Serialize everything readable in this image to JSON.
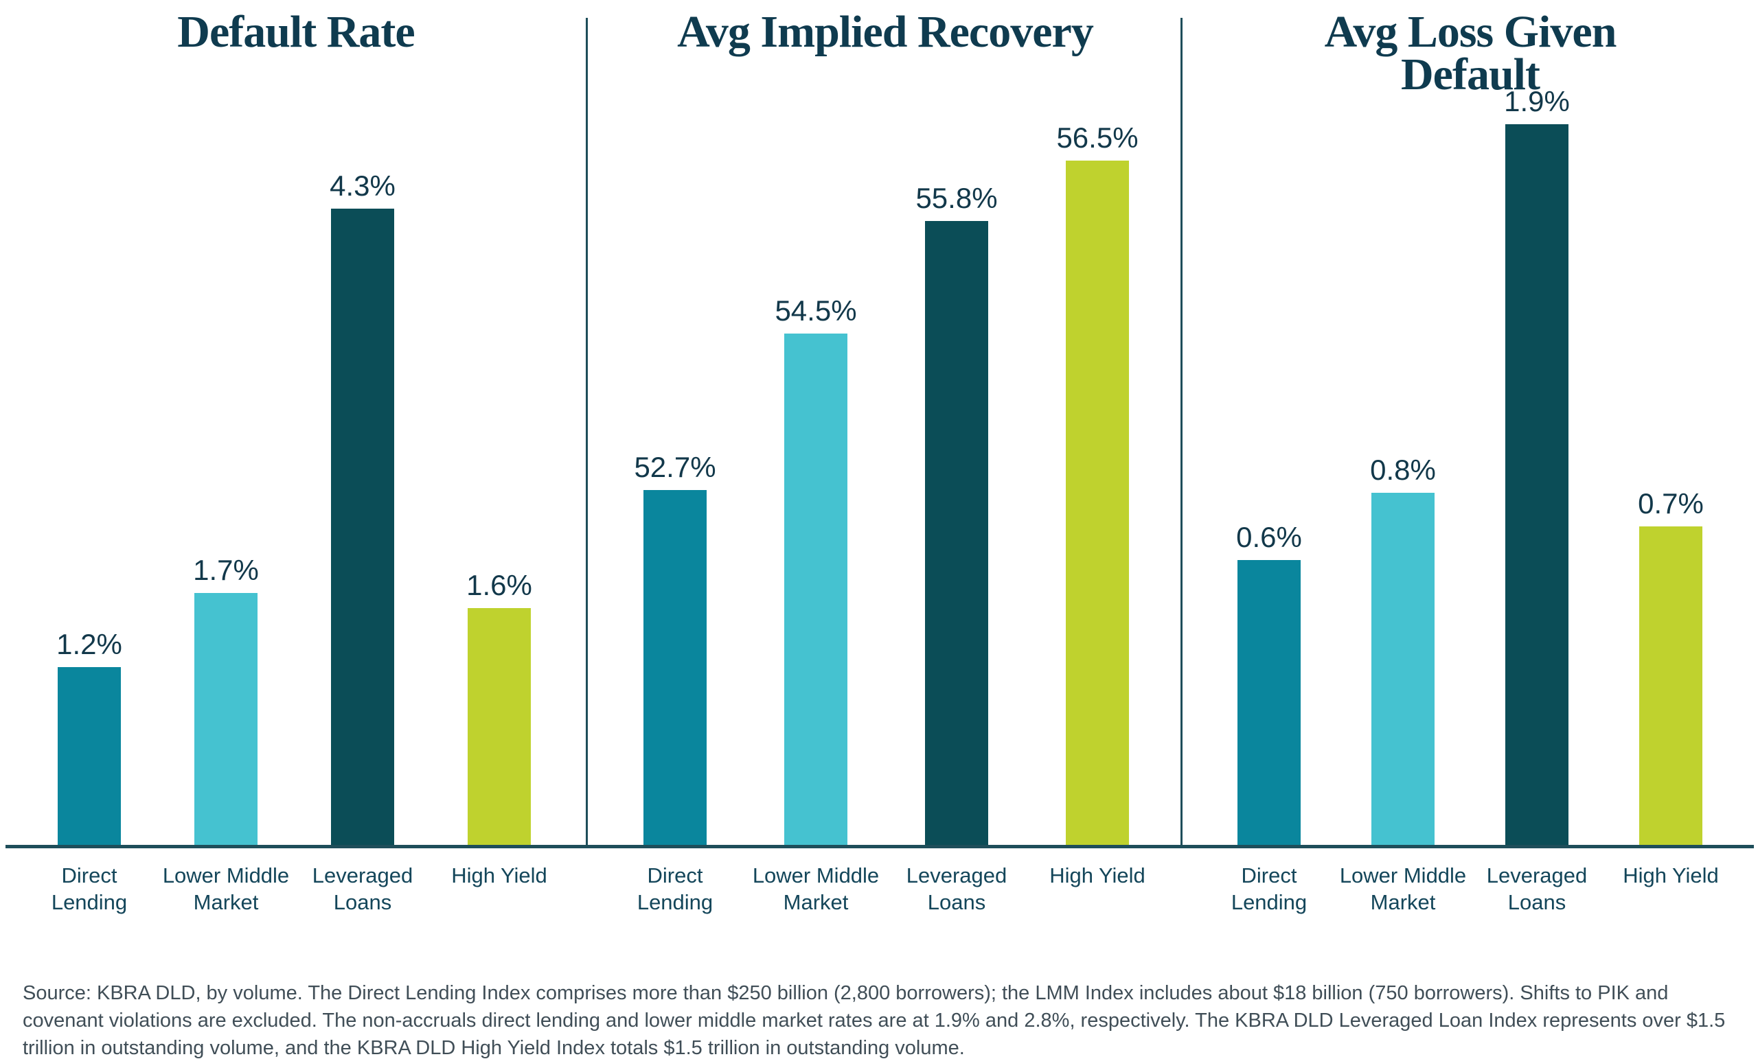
{
  "page": {
    "background": "#ffffff",
    "axis_color": "#1e4e5a",
    "title_color": "#0f3b4f",
    "value_label_color": "#12384a",
    "category_label_color": "#14465a",
    "source_color": "#404e57"
  },
  "chart_data": [
    {
      "type": "bar",
      "title": "Default Rate",
      "title_lines": [
        "Default Rate"
      ],
      "categories": [
        "Direct Lending",
        "Lower Middle Market",
        "Leveraged Loans",
        "High Yield"
      ],
      "category_lines": [
        [
          "Direct",
          "Lending"
        ],
        [
          "Lower Middle",
          "Market"
        ],
        [
          "Leveraged",
          "Loans"
        ],
        [
          "High Yield"
        ]
      ],
      "values": [
        1.2,
        1.7,
        4.3,
        1.6
      ],
      "value_labels": [
        "1.2%",
        "1.7%",
        "4.3%",
        "1.6%"
      ],
      "unit": "%",
      "ylim": [
        0,
        4.87
      ],
      "bar_colors": [
        "#0a869d",
        "#45c2d0",
        "#0b4d57",
        "#bfd22e"
      ],
      "grid": false,
      "legend": "none"
    },
    {
      "type": "bar",
      "title": "Avg Implied Recovery",
      "title_lines": [
        "Avg Implied Recovery"
      ],
      "categories": [
        "Direct Lending",
        "Lower Middle Market",
        "Leveraged Loans",
        "High Yield"
      ],
      "category_lines": [
        [
          "Direct",
          "Lending"
        ],
        [
          "Lower Middle",
          "Market"
        ],
        [
          "Leveraged",
          "Loans"
        ],
        [
          "High Yield"
        ]
      ],
      "values": [
        52.7,
        54.5,
        55.8,
        56.5
      ],
      "value_labels": [
        "52.7%",
        "54.5%",
        "55.8%",
        "56.5%"
      ],
      "unit": "%",
      "ylim": [
        48.6,
        56.92
      ],
      "bar_colors": [
        "#0a869d",
        "#45c2d0",
        "#0b4d57",
        "#bfd22e"
      ],
      "grid": false,
      "legend": "none"
    },
    {
      "type": "bar",
      "title": "Avg Loss Given Default",
      "title_lines": [
        "Avg Loss Given",
        "Default"
      ],
      "categories": [
        "Direct Lending",
        "Lower Middle Market",
        "Leveraged Loans",
        "High Yield"
      ],
      "category_lines": [
        [
          "Direct",
          "Lending"
        ],
        [
          "Lower Middle",
          "Market"
        ],
        [
          "Leveraged",
          "Loans"
        ],
        [
          "High Yield"
        ]
      ],
      "values": [
        0.6,
        0.8,
        1.9,
        0.7
      ],
      "value_labels": [
        "0.6%",
        "0.8%",
        "1.9%",
        "0.7%"
      ],
      "unit": "%",
      "ylim": [
        -0.25,
        1.9
      ],
      "bar_colors": [
        "#0a869d",
        "#45c2d0",
        "#0b4d57",
        "#bfd22e"
      ],
      "grid": false,
      "legend": "none"
    }
  ],
  "source_note": "Source: KBRA DLD, by volume. The Direct Lending Index comprises more than $250 billion (2,800 borrowers); the LMM Index includes about $18 billion (750 borrowers). Shifts to PIK and covenant violations are excluded. The non-accruals direct lending and lower middle market rates are at 1.9% and 2.8%, respectively. The KBRA DLD Leveraged Loan Index represents over $1.5 trillion in outstanding volume, and the KBRA DLD High Yield Index totals $1.5 trillion in outstanding volume."
}
